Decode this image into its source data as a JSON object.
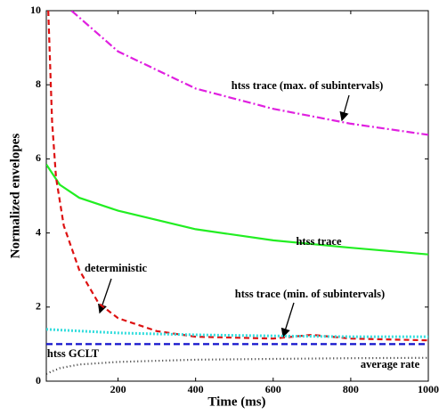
{
  "chart_data": {
    "type": "line",
    "x_label": "Time (ms)",
    "y_label": "Normalized envelopes",
    "xlim": [
      15,
      1000
    ],
    "xticks": [
      200,
      400,
      600,
      800,
      1000
    ],
    "ylim": [
      0,
      10
    ],
    "yticks": [
      0,
      2,
      4,
      6,
      8,
      10
    ],
    "series": [
      {
        "name": "htss trace (max. of subintervals)",
        "color": "#e020e0",
        "dash": "9,3,2,3",
        "x": [
          80,
          200,
          400,
          600,
          800,
          1000
        ],
        "values": [
          10,
          8.9,
          7.9,
          7.35,
          6.95,
          6.65
        ]
      },
      {
        "name": "htss trace",
        "color": "#22ee22",
        "dash": "none",
        "x": [
          15,
          50,
          100,
          200,
          400,
          600,
          800,
          1000
        ],
        "values": [
          5.85,
          5.3,
          4.95,
          4.6,
          4.1,
          3.8,
          3.6,
          3.42
        ]
      },
      {
        "name": "deterministic",
        "color": "#dd1111",
        "dash": "6,4",
        "x": [
          20,
          30,
          40,
          60,
          100,
          150,
          200,
          300,
          400,
          600,
          700,
          800,
          1000
        ],
        "values": [
          10,
          7,
          5.5,
          4.2,
          3,
          2.1,
          1.7,
          1.35,
          1.2,
          1.15,
          1.25,
          1.15,
          1.1
        ]
      },
      {
        "name": "htss trace (min. of subintervals)",
        "color": "#33dddd",
        "dash": "2,2",
        "x": [
          15,
          200,
          400,
          600,
          800,
          1000
        ],
        "values": [
          1.4,
          1.3,
          1.25,
          1.22,
          1.2,
          1.2
        ]
      },
      {
        "name": "htss GCLT",
        "color": "#1111cc",
        "dash": "7,4",
        "x": [
          15,
          1000
        ],
        "values": [
          1,
          1
        ]
      },
      {
        "name": "average rate",
        "color": "#333333",
        "dash": "1,3",
        "x": [
          15,
          50,
          100,
          200,
          400,
          600,
          800,
          1000
        ],
        "values": [
          0.2,
          0.35,
          0.45,
          0.52,
          0.58,
          0.6,
          0.62,
          0.63
        ]
      }
    ]
  }
}
